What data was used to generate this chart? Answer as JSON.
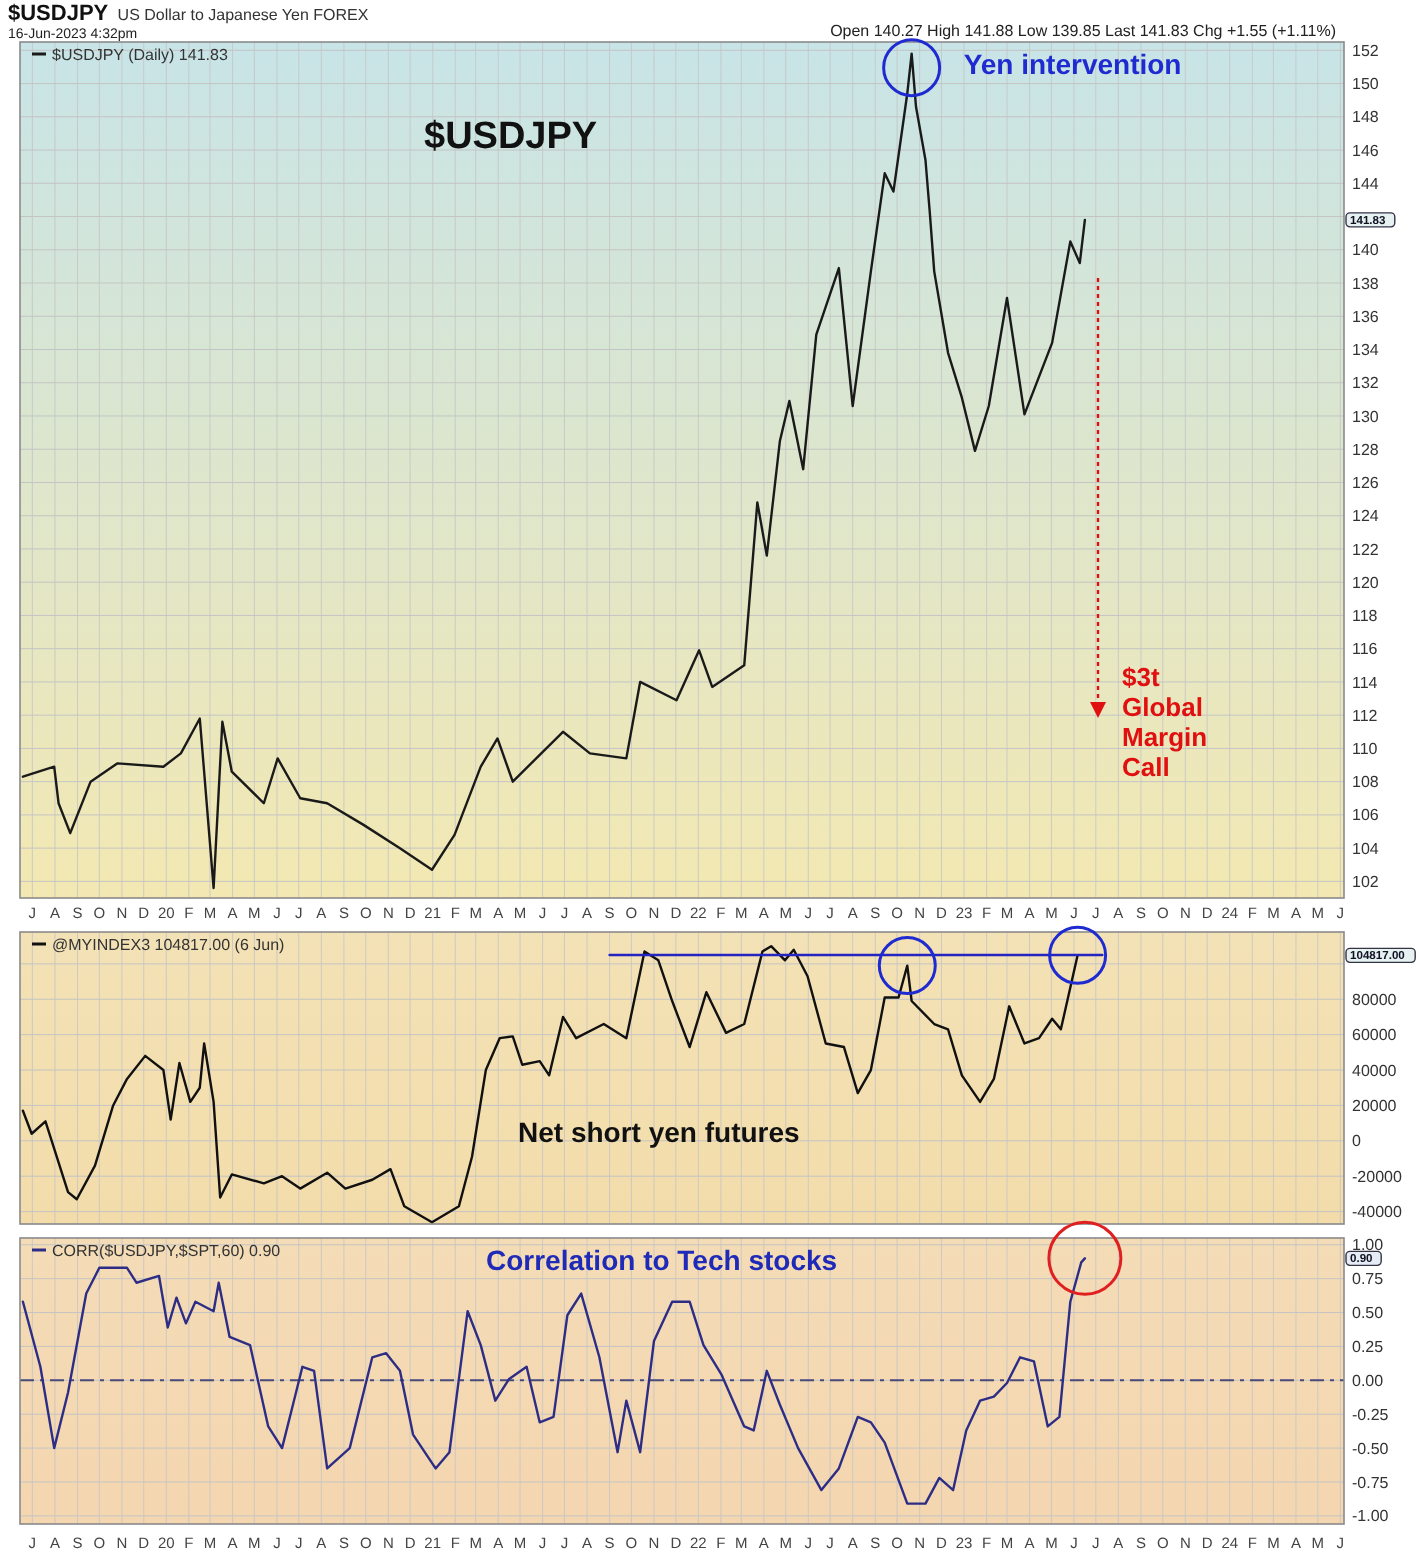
{
  "chart_data": [
    {
      "type": "line",
      "title": "$USDJPY",
      "subtitle": "US Dollar to Japanese Yen FOREX",
      "annotations": [
        "16-Jun-2023 4:32pm",
        "Open 140.27 High 141.88 Low 139.85 Last 141.83 Chg +1.55 (+1.11%)",
        "$USDJPY",
        "$3t Global Margin Call",
        "141.83",
        {
          "text": "Yen intervention",
          "x": "2022-10-21",
          "y": 151.8
        }
      ],
      "x": [
        "2019-06-18",
        "2019-07-31",
        "2019-08-06",
        "2019-08-22",
        "2019-09-19",
        "2019-10-26",
        "2019-12-28",
        "2020-01-21",
        "2020-02-16",
        "2020-03-06",
        "2020-03-18",
        "2020-03-31",
        "2020-05-14",
        "2020-06-02",
        "2020-07-03",
        "2020-08-09",
        "2020-09-28",
        "2020-11-17",
        "2020-12-31",
        "2021-01-31",
        "2021-03-08",
        "2021-03-31",
        "2021-04-21",
        "2021-06-29",
        "2021-08-05",
        "2021-09-24",
        "2021-10-13",
        "2021-12-02",
        "2022-01-02",
        "2022-01-20",
        "2022-03-05",
        "2022-03-23",
        "2022-04-05",
        "2022-04-23",
        "2022-05-06",
        "2022-05-25",
        "2022-06-12",
        "2022-07-13",
        "2022-08-01",
        "2022-08-26",
        "2022-09-14",
        "2022-09-26",
        "2022-10-15",
        "2022-10-21",
        "2022-10-27",
        "2022-11-09",
        "2022-11-15",
        "2022-11-21",
        "2022-12-10",
        "2022-12-29",
        "2023-01-16",
        "2023-02-04",
        "2023-03-01",
        "2023-03-25",
        "2023-05-02",
        "2023-05-27",
        "2023-06-09",
        "2023-06-16"
      ],
      "series": [
        {
          "name": "$USDJPY (Daily) 141.83",
          "color": "#1a1a1a",
          "values": [
            108.3,
            108.9,
            106.7,
            104.9,
            108.0,
            109.1,
            108.9,
            109.7,
            111.8,
            101.6,
            111.6,
            108.6,
            106.7,
            109.4,
            107.0,
            106.7,
            105.4,
            104.0,
            102.7,
            104.8,
            108.9,
            110.6,
            108.0,
            111.0,
            109.7,
            109.4,
            114.0,
            112.9,
            115.9,
            113.7,
            115.0,
            124.8,
            121.6,
            128.5,
            130.9,
            126.8,
            134.9,
            138.9,
            130.6,
            138.7,
            144.6,
            143.5,
            149.4,
            151.8,
            148.6,
            145.4,
            142.2,
            138.7,
            133.8,
            131.1,
            127.9,
            130.6,
            137.1,
            130.1,
            134.4,
            140.5,
            139.2,
            141.8
          ]
        }
      ],
      "xlim": [
        "2019-06-14",
        "2024-06-06"
      ],
      "xticks": [
        {
          "value": "2019-07-01",
          "label": "J"
        },
        {
          "value": "2019-08-01",
          "label": "A"
        },
        {
          "value": "2019-09-01",
          "label": "S"
        },
        {
          "value": "2019-10-01",
          "label": "O"
        },
        {
          "value": "2019-11-01",
          "label": "N"
        },
        {
          "value": "2019-12-01",
          "label": "D"
        },
        {
          "value": "2020-01-01",
          "label": "20"
        },
        {
          "value": "2020-02-01",
          "label": "F"
        },
        {
          "value": "2020-03-01",
          "label": "M"
        },
        {
          "value": "2020-04-01",
          "label": "A"
        },
        {
          "value": "2020-05-01",
          "label": "M"
        },
        {
          "value": "2020-06-01",
          "label": "J"
        },
        {
          "value": "2020-07-01",
          "label": "J"
        },
        {
          "value": "2020-08-01",
          "label": "A"
        },
        {
          "value": "2020-09-01",
          "label": "S"
        },
        {
          "value": "2020-10-01",
          "label": "O"
        },
        {
          "value": "2020-11-01",
          "label": "N"
        },
        {
          "value": "2020-12-01",
          "label": "D"
        },
        {
          "value": "2021-01-01",
          "label": "21"
        },
        {
          "value": "2021-02-01",
          "label": "F"
        },
        {
          "value": "2021-03-01",
          "label": "M"
        },
        {
          "value": "2021-04-01",
          "label": "A"
        },
        {
          "value": "2021-05-01",
          "label": "M"
        },
        {
          "value": "2021-06-01",
          "label": "J"
        },
        {
          "value": "2021-07-01",
          "label": "J"
        },
        {
          "value": "2021-08-01",
          "label": "A"
        },
        {
          "value": "2021-09-01",
          "label": "S"
        },
        {
          "value": "2021-10-01",
          "label": "O"
        },
        {
          "value": "2021-11-01",
          "label": "N"
        },
        {
          "value": "2021-12-01",
          "label": "D"
        },
        {
          "value": "2022-01-01",
          "label": "22"
        },
        {
          "value": "2022-02-01",
          "label": "F"
        },
        {
          "value": "2022-03-01",
          "label": "M"
        },
        {
          "value": "2022-04-01",
          "label": "A"
        },
        {
          "value": "2022-05-01",
          "label": "M"
        },
        {
          "value": "2022-06-01",
          "label": "J"
        },
        {
          "value": "2022-07-01",
          "label": "J"
        },
        {
          "value": "2022-08-01",
          "label": "A"
        },
        {
          "value": "2022-09-01",
          "label": "S"
        },
        {
          "value": "2022-10-01",
          "label": "O"
        },
        {
          "value": "2022-11-01",
          "label": "N"
        },
        {
          "value": "2022-12-01",
          "label": "D"
        },
        {
          "value": "2023-01-01",
          "label": "23"
        },
        {
          "value": "2023-02-01",
          "label": "F"
        },
        {
          "value": "2023-03-01",
          "label": "M"
        },
        {
          "value": "2023-04-01",
          "label": "A"
        },
        {
          "value": "2023-05-01",
          "label": "M"
        },
        {
          "value": "2023-06-01",
          "label": "J"
        },
        {
          "value": "2023-07-01",
          "label": "J"
        },
        {
          "value": "2023-08-01",
          "label": "A"
        },
        {
          "value": "2023-09-01",
          "label": "S"
        },
        {
          "value": "2023-10-01",
          "label": "O"
        },
        {
          "value": "2023-11-01",
          "label": "N"
        },
        {
          "value": "2023-12-01",
          "label": "D"
        },
        {
          "value": "2024-01-01",
          "label": "24"
        },
        {
          "value": "2024-02-01",
          "label": "F"
        },
        {
          "value": "2024-03-01",
          "label": "M"
        },
        {
          "value": "2024-04-01",
          "label": "A"
        },
        {
          "value": "2024-05-01",
          "label": "M"
        },
        {
          "value": "2024-06-01",
          "label": "J"
        }
      ],
      "ylim": [
        101,
        152.5
      ],
      "yticks": [
        102,
        104,
        106,
        108,
        110,
        112,
        114,
        116,
        118,
        120,
        122,
        124,
        126,
        128,
        130,
        132,
        134,
        136,
        138,
        140,
        {
          "value": 142,
          "label": null
        },
        144,
        146,
        148,
        150,
        152
      ],
      "grid": true,
      "legend": "top left"
    },
    {
      "type": "line",
      "annotations": [
        "Net short yen futures",
        "104817.00"
      ],
      "series": [
        {
          "name": "@MYINDEX3 104817.00 (6 Jun)",
          "color": "#111111",
          "x": [
            "2019-06-18",
            "2019-06-30",
            "2019-07-19",
            "2019-08-19",
            "2019-08-31",
            "2019-09-25",
            "2019-10-20",
            "2019-11-08",
            "2019-12-03",
            "2019-12-28",
            "2020-01-07",
            "2020-01-19",
            "2020-02-03",
            "2020-02-16",
            "2020-02-22",
            "2020-03-06",
            "2020-03-15",
            "2020-03-31",
            "2020-05-14",
            "2020-06-08",
            "2020-07-03",
            "2020-08-09",
            "2020-09-03",
            "2020-10-10",
            "2020-11-04",
            "2020-11-23",
            "2020-12-31",
            "2021-02-06",
            "2021-02-24",
            "2021-03-15",
            "2021-04-03",
            "2021-04-21",
            "2021-05-04",
            "2021-05-28",
            "2021-06-10",
            "2021-06-29",
            "2021-07-17",
            "2021-08-24",
            "2021-09-24",
            "2021-10-19",
            "2021-11-07",
            "2021-11-26",
            "2021-12-20",
            "2022-01-12",
            "2022-02-08",
            "2022-03-05",
            "2022-03-30",
            "2022-04-11",
            "2022-04-30",
            "2022-05-12",
            "2022-05-31",
            "2022-06-25",
            "2022-07-20",
            "2022-08-08",
            "2022-08-26",
            "2022-09-14",
            "2022-10-03",
            "2022-10-15",
            "2022-10-21",
            "2022-11-21",
            "2022-12-10",
            "2022-12-29",
            "2023-01-23",
            "2023-02-11",
            "2023-03-04",
            "2023-03-25",
            "2023-04-14",
            "2023-05-02",
            "2023-05-14",
            "2023-06-06"
          ],
          "values": [
            17000,
            4000,
            11000,
            -29000,
            -33000,
            -14000,
            20000,
            35000,
            48000,
            40000,
            12000,
            44000,
            22000,
            30000,
            55000,
            22000,
            -32000,
            -19000,
            -24000,
            -20000,
            -27000,
            -18000,
            -27000,
            -22000,
            -16000,
            -37000,
            -46000,
            -37000,
            -9000,
            40000,
            58000,
            59000,
            43000,
            45000,
            37000,
            70000,
            58000,
            66000,
            58000,
            107000,
            102000,
            79000,
            53000,
            84000,
            61000,
            66000,
            107000,
            110000,
            102000,
            108000,
            93000,
            55000,
            53000,
            27000,
            40000,
            81000,
            81000,
            99000,
            79000,
            66000,
            63000,
            37000,
            22000,
            35000,
            76000,
            55000,
            58000,
            69000,
            63000,
            104817
          ]
        },
        {
          "color": "#2424c0",
          "x": [
            "2021-09-01",
            "2023-07-10"
          ],
          "values": [
            105000,
            105000
          ]
        }
      ],
      "xlim": [
        "2019-06-14",
        "2024-06-06"
      ],
      "xticks": [
        {
          "value": "2019-07-01",
          "label": null
        },
        {
          "value": "2019-08-01",
          "label": null
        },
        {
          "value": "2019-09-01",
          "label": null
        },
        {
          "value": "2019-10-01",
          "label": null
        },
        {
          "value": "2019-11-01",
          "label": null
        },
        {
          "value": "2019-12-01",
          "label": null
        },
        {
          "value": "2020-01-01",
          "label": null
        },
        {
          "value": "2020-02-01",
          "label": null
        },
        {
          "value": "2020-03-01",
          "label": null
        },
        {
          "value": "2020-04-01",
          "label": null
        },
        {
          "value": "2020-05-01",
          "label": null
        },
        {
          "value": "2020-06-01",
          "label": null
        },
        {
          "value": "2020-07-01",
          "label": null
        },
        {
          "value": "2020-08-01",
          "label": null
        },
        {
          "value": "2020-09-01",
          "label": null
        },
        {
          "value": "2020-10-01",
          "label": null
        },
        {
          "value": "2020-11-01",
          "label": null
        },
        {
          "value": "2020-12-01",
          "label": null
        },
        {
          "value": "2021-01-01",
          "label": null
        },
        {
          "value": "2021-02-01",
          "label": null
        },
        {
          "value": "2021-03-01",
          "label": null
        },
        {
          "value": "2021-04-01",
          "label": null
        },
        {
          "value": "2021-05-01",
          "label": null
        },
        {
          "value": "2021-06-01",
          "label": null
        },
        {
          "value": "2021-07-01",
          "label": null
        },
        {
          "value": "2021-08-01",
          "label": null
        },
        {
          "value": "2021-09-01",
          "label": null
        },
        {
          "value": "2021-10-01",
          "label": null
        },
        {
          "value": "2021-11-01",
          "label": null
        },
        {
          "value": "2021-12-01",
          "label": null
        },
        {
          "value": "2022-01-01",
          "label": null
        },
        {
          "value": "2022-02-01",
          "label": null
        },
        {
          "value": "2022-03-01",
          "label": null
        },
        {
          "value": "2022-04-01",
          "label": null
        },
        {
          "value": "2022-05-01",
          "label": null
        },
        {
          "value": "2022-06-01",
          "label": null
        },
        {
          "value": "2022-07-01",
          "label": null
        },
        {
          "value": "2022-08-01",
          "label": null
        },
        {
          "value": "2022-09-01",
          "label": null
        },
        {
          "value": "2022-10-01",
          "label": null
        },
        {
          "value": "2022-11-01",
          "label": null
        },
        {
          "value": "2022-12-01",
          "label": null
        },
        {
          "value": "2023-01-01",
          "label": null
        },
        {
          "value": "2023-02-01",
          "label": null
        },
        {
          "value": "2023-03-01",
          "label": null
        },
        {
          "value": "2023-04-01",
          "label": null
        },
        {
          "value": "2023-05-01",
          "label": null
        },
        {
          "value": "2023-06-01",
          "label": null
        },
        {
          "value": "2023-07-01",
          "label": null
        },
        {
          "value": "2023-08-01",
          "label": null
        },
        {
          "value": "2023-09-01",
          "label": null
        },
        {
          "value": "2023-10-01",
          "label": null
        },
        {
          "value": "2023-11-01",
          "label": null
        },
        {
          "value": "2023-12-01",
          "label": null
        },
        {
          "value": "2024-01-01",
          "label": null
        },
        {
          "value": "2024-02-01",
          "label": null
        },
        {
          "value": "2024-03-01",
          "label": null
        },
        {
          "value": "2024-04-01",
          "label": null
        },
        {
          "value": "2024-05-01",
          "label": null
        },
        {
          "value": "2024-06-01",
          "label": null
        }
      ],
      "ylim": [
        -47000,
        118000
      ],
      "yticks": [
        -40000,
        -20000,
        0,
        20000,
        40000,
        60000,
        80000,
        {
          "value": 100000,
          "label": null
        }
      ],
      "grid": true,
      "legend": "top left",
      "tick_labels": "y"
    },
    {
      "type": "line",
      "annotations": [
        "Correlation to Tech stocks",
        "0.90"
      ],
      "x": [
        "2019-06-18",
        "2019-07-12",
        "2019-07-31",
        "2019-08-19",
        "2019-09-13",
        "2019-10-01",
        "2019-11-08",
        "2019-11-21",
        "2019-12-22",
        "2020-01-03",
        "2020-01-15",
        "2020-01-28",
        "2020-02-10",
        "2020-03-06",
        "2020-03-13",
        "2020-03-28",
        "2020-04-25",
        "2020-05-20",
        "2020-06-08",
        "2020-06-23",
        "2020-07-06",
        "2020-07-22",
        "2020-08-09",
        "2020-09-09",
        "2020-10-10",
        "2020-10-29",
        "2020-11-17",
        "2020-12-05",
        "2021-01-05",
        "2021-01-24",
        "2021-02-18",
        "2021-03-08",
        "2021-03-28",
        "2021-04-16",
        "2021-05-10",
        "2021-05-28",
        "2021-06-16",
        "2021-07-05",
        "2021-07-24",
        "2021-08-18",
        "2021-09-12",
        "2021-09-24",
        "2021-10-13",
        "2021-11-01",
        "2021-11-26",
        "2021-12-20",
        "2022-01-08",
        "2022-02-02",
        "2022-03-05",
        "2022-03-18",
        "2022-04-05",
        "2022-04-23",
        "2022-05-18",
        "2022-06-19",
        "2022-07-13",
        "2022-08-08",
        "2022-08-26",
        "2022-09-14",
        "2022-10-15",
        "2022-11-09",
        "2022-11-28",
        "2022-12-17",
        "2023-01-04",
        "2023-01-23",
        "2023-02-11",
        "2023-03-01",
        "2023-03-19",
        "2023-04-07",
        "2023-04-26",
        "2023-05-12",
        "2023-05-27",
        "2023-06-11",
        "2023-06-16"
      ],
      "series": [
        {
          "name": "CORR($USDJPY,$SPT,60) 0.90",
          "color": "#2d2d86",
          "values": [
            0.58,
            0.1,
            -0.5,
            -0.09,
            0.64,
            0.83,
            0.83,
            0.72,
            0.77,
            0.39,
            0.61,
            0.42,
            0.58,
            0.51,
            0.72,
            0.32,
            0.26,
            -0.34,
            -0.5,
            -0.18,
            0.1,
            0.07,
            -0.65,
            -0.5,
            0.17,
            0.2,
            0.07,
            -0.4,
            -0.65,
            -0.53,
            0.51,
            0.26,
            -0.15,
            0.01,
            0.1,
            -0.31,
            -0.27,
            0.48,
            0.64,
            0.17,
            -0.53,
            -0.15,
            -0.53,
            0.29,
            0.58,
            0.58,
            0.26,
            0.04,
            -0.34,
            -0.37,
            0.07,
            -0.18,
            -0.5,
            -0.81,
            -0.65,
            -0.27,
            -0.31,
            -0.46,
            -0.91,
            -0.91,
            -0.72,
            -0.81,
            -0.37,
            -0.15,
            -0.12,
            -0.02,
            0.17,
            0.14,
            -0.34,
            -0.27,
            0.58,
            0.87,
            0.9
          ]
        }
      ],
      "xlim": [
        "2019-06-14",
        "2024-06-06"
      ],
      "xticks": [
        {
          "value": "2019-07-01",
          "label": "J"
        },
        {
          "value": "2019-08-01",
          "label": "A"
        },
        {
          "value": "2019-09-01",
          "label": "S"
        },
        {
          "value": "2019-10-01",
          "label": "O"
        },
        {
          "value": "2019-11-01",
          "label": "N"
        },
        {
          "value": "2019-12-01",
          "label": "D"
        },
        {
          "value": "2020-01-01",
          "label": "20"
        },
        {
          "value": "2020-02-01",
          "label": "F"
        },
        {
          "value": "2020-03-01",
          "label": "M"
        },
        {
          "value": "2020-04-01",
          "label": "A"
        },
        {
          "value": "2020-05-01",
          "label": "M"
        },
        {
          "value": "2020-06-01",
          "label": "J"
        },
        {
          "value": "2020-07-01",
          "label": "J"
        },
        {
          "value": "2020-08-01",
          "label": "A"
        },
        {
          "value": "2020-09-01",
          "label": "S"
        },
        {
          "value": "2020-10-01",
          "label": "O"
        },
        {
          "value": "2020-11-01",
          "label": "N"
        },
        {
          "value": "2020-12-01",
          "label": "D"
        },
        {
          "value": "2021-01-01",
          "label": "21"
        },
        {
          "value": "2021-02-01",
          "label": "F"
        },
        {
          "value": "2021-03-01",
          "label": "M"
        },
        {
          "value": "2021-04-01",
          "label": "A"
        },
        {
          "value": "2021-05-01",
          "label": "M"
        },
        {
          "value": "2021-06-01",
          "label": "J"
        },
        {
          "value": "2021-07-01",
          "label": "J"
        },
        {
          "value": "2021-08-01",
          "label": "A"
        },
        {
          "value": "2021-09-01",
          "label": "S"
        },
        {
          "value": "2021-10-01",
          "label": "O"
        },
        {
          "value": "2021-11-01",
          "label": "N"
        },
        {
          "value": "2021-12-01",
          "label": "D"
        },
        {
          "value": "2022-01-01",
          "label": "22"
        },
        {
          "value": "2022-02-01",
          "label": "F"
        },
        {
          "value": "2022-03-01",
          "label": "M"
        },
        {
          "value": "2022-04-01",
          "label": "A"
        },
        {
          "value": "2022-05-01",
          "label": "M"
        },
        {
          "value": "2022-06-01",
          "label": "J"
        },
        {
          "value": "2022-07-01",
          "label": "J"
        },
        {
          "value": "2022-08-01",
          "label": "A"
        },
        {
          "value": "2022-09-01",
          "label": "S"
        },
        {
          "value": "2022-10-01",
          "label": "O"
        },
        {
          "value": "2022-11-01",
          "label": "N"
        },
        {
          "value": "2022-12-01",
          "label": "D"
        },
        {
          "value": "2023-01-01",
          "label": "23"
        },
        {
          "value": "2023-02-01",
          "label": "F"
        },
        {
          "value": "2023-03-01",
          "label": "M"
        },
        {
          "value": "2023-04-01",
          "label": "A"
        },
        {
          "value": "2023-05-01",
          "label": "M"
        },
        {
          "value": "2023-06-01",
          "label": "J"
        },
        {
          "value": "2023-07-01",
          "label": "J"
        },
        {
          "value": "2023-08-01",
          "label": "A"
        },
        {
          "value": "2023-09-01",
          "label": "S"
        },
        {
          "value": "2023-10-01",
          "label": "O"
        },
        {
          "value": "2023-11-01",
          "label": "N"
        },
        {
          "value": "2023-12-01",
          "label": "D"
        },
        {
          "value": "2024-01-01",
          "label": "24"
        },
        {
          "value": "2024-02-01",
          "label": "F"
        },
        {
          "value": "2024-03-01",
          "label": "M"
        },
        {
          "value": "2024-04-01",
          "label": "A"
        },
        {
          "value": "2024-05-01",
          "label": "M"
        },
        {
          "value": "2024-06-01",
          "label": "J"
        }
      ],
      "ylim": [
        -1.06,
        1.05
      ],
      "yticks": [
        {
          "value": -1,
          "label": "-1.00"
        },
        {
          "value": -0.75,
          "label": "-0.75"
        },
        {
          "value": -0.5,
          "label": "-0.50"
        },
        {
          "value": -0.25,
          "label": "-0.25"
        },
        {
          "value": 0,
          "label": "0.00"
        },
        {
          "value": 0.25,
          "label": "0.25"
        },
        {
          "value": 0.5,
          "label": "0.50"
        },
        {
          "value": 0.75,
          "label": "0.75"
        },
        {
          "value": 1,
          "label": "1.00"
        }
      ],
      "ref_lines": [
        {
          "axis": "y",
          "value": 0,
          "color": "#4a4a7a",
          "line_style": "dashed"
        }
      ],
      "grid": true,
      "legend": "top left"
    }
  ]
}
